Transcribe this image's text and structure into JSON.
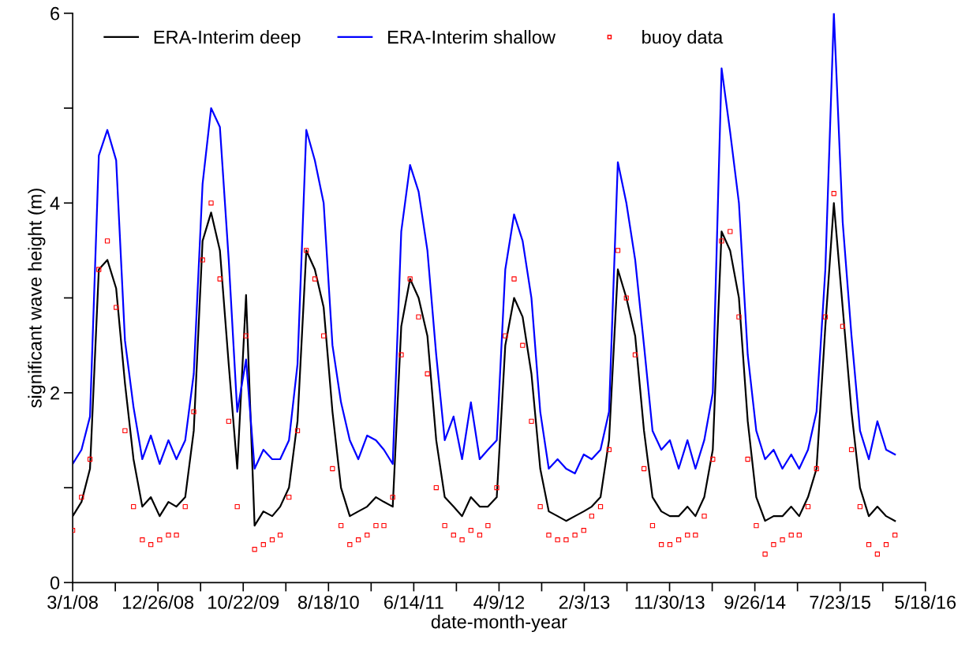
{
  "chart_data": {
    "type": "line",
    "xlabel": "date-month-year",
    "ylabel": "significant wave height (m)",
    "x": [
      "2008-03",
      "2008-04",
      "2008-05",
      "2008-06",
      "2008-07",
      "2008-08",
      "2008-09",
      "2008-10",
      "2008-11",
      "2008-12",
      "2009-01",
      "2009-02",
      "2009-03",
      "2009-04",
      "2009-05",
      "2009-06",
      "2009-07",
      "2009-08",
      "2009-09",
      "2009-10",
      "2009-11",
      "2009-12",
      "2010-01",
      "2010-02",
      "2010-03",
      "2010-04",
      "2010-05",
      "2010-06",
      "2010-07",
      "2010-08",
      "2010-09",
      "2010-10",
      "2010-11",
      "2010-12",
      "2011-01",
      "2011-02",
      "2011-03",
      "2011-04",
      "2011-05",
      "2011-06",
      "2011-07",
      "2011-08",
      "2011-09",
      "2011-10",
      "2011-11",
      "2011-12",
      "2012-01",
      "2012-02",
      "2012-03",
      "2012-04",
      "2012-05",
      "2012-06",
      "2012-07",
      "2012-08",
      "2012-09",
      "2012-10",
      "2012-11",
      "2012-12",
      "2013-01",
      "2013-02",
      "2013-03",
      "2013-04",
      "2013-05",
      "2013-06",
      "2013-07",
      "2013-08",
      "2013-09",
      "2013-10",
      "2013-11",
      "2013-12",
      "2014-01",
      "2014-02",
      "2014-03",
      "2014-04",
      "2014-05",
      "2014-06",
      "2014-07",
      "2014-08",
      "2014-09",
      "2014-10",
      "2014-11",
      "2014-12",
      "2015-01",
      "2015-02",
      "2015-03",
      "2015-04",
      "2015-05",
      "2015-06",
      "2015-07",
      "2015-08",
      "2015-09",
      "2015-10",
      "2015-11",
      "2015-12",
      "2016-01",
      "2016-02"
    ],
    "series": [
      {
        "name": "ERA-Interim deep",
        "color": "#000000",
        "values": [
          0.7,
          0.85,
          1.2,
          3.3,
          3.4,
          3.1,
          2.1,
          1.3,
          0.8,
          0.9,
          0.7,
          0.85,
          0.8,
          0.9,
          1.6,
          3.6,
          3.9,
          3.5,
          2.3,
          1.2,
          3.03,
          0.6,
          0.75,
          0.7,
          0.8,
          1.0,
          1.7,
          3.5,
          3.3,
          2.9,
          1.8,
          1.0,
          0.7,
          0.75,
          0.8,
          0.9,
          0.85,
          0.8,
          2.7,
          3.2,
          3.0,
          2.6,
          1.5,
          0.9,
          0.8,
          0.7,
          0.9,
          0.8,
          0.8,
          0.9,
          2.5,
          3.0,
          2.8,
          2.2,
          1.2,
          0.75,
          0.7,
          0.65,
          0.7,
          0.75,
          0.8,
          0.9,
          1.5,
          3.3,
          3.0,
          2.6,
          1.6,
          0.9,
          0.75,
          0.7,
          0.7,
          0.8,
          0.7,
          0.9,
          1.4,
          3.7,
          3.5,
          3.0,
          1.7,
          0.9,
          0.65,
          0.7,
          0.7,
          0.8,
          0.7,
          0.9,
          1.2,
          2.7,
          4.0,
          2.9,
          1.8,
          1.0,
          0.7,
          0.8,
          0.7,
          0.65
        ]
      },
      {
        "name": "ERA-Interim shallow",
        "color": "#0000ff",
        "values": [
          1.25,
          1.4,
          1.75,
          4.5,
          4.77,
          4.45,
          2.55,
          1.85,
          1.3,
          1.55,
          1.25,
          1.5,
          1.3,
          1.5,
          2.2,
          4.2,
          5.0,
          4.8,
          3.4,
          1.8,
          2.35,
          1.2,
          1.4,
          1.3,
          1.3,
          1.5,
          2.3,
          4.77,
          4.45,
          4.0,
          2.5,
          1.9,
          1.5,
          1.3,
          1.55,
          1.5,
          1.4,
          1.25,
          3.7,
          4.4,
          4.12,
          3.5,
          2.4,
          1.5,
          1.75,
          1.3,
          1.9,
          1.3,
          1.4,
          1.5,
          3.3,
          3.88,
          3.6,
          3.0,
          1.8,
          1.2,
          1.3,
          1.2,
          1.15,
          1.35,
          1.3,
          1.4,
          1.8,
          4.43,
          4.0,
          3.4,
          2.5,
          1.6,
          1.4,
          1.5,
          1.2,
          1.5,
          1.2,
          1.5,
          2.0,
          5.42,
          4.75,
          4.0,
          2.4,
          1.6,
          1.3,
          1.4,
          1.2,
          1.35,
          1.2,
          1.4,
          1.8,
          3.3,
          6.0,
          3.8,
          2.6,
          1.6,
          1.3,
          1.7,
          1.4,
          1.35
        ]
      },
      {
        "name": "buoy data",
        "type": "scatter",
        "color": "#ff0000",
        "marker": "square",
        "values": [
          0.55,
          0.9,
          1.3,
          3.3,
          3.6,
          2.9,
          1.6,
          0.8,
          0.45,
          0.4,
          0.45,
          0.5,
          0.5,
          0.8,
          1.8,
          3.4,
          4.0,
          3.2,
          1.7,
          0.8,
          2.6,
          0.35,
          0.4,
          0.45,
          0.5,
          0.9,
          1.6,
          3.5,
          3.2,
          2.6,
          1.2,
          0.6,
          0.4,
          0.45,
          0.5,
          0.6,
          0.6,
          0.9,
          2.4,
          3.2,
          2.8,
          2.2,
          1.0,
          0.6,
          0.5,
          0.45,
          0.55,
          0.5,
          0.6,
          1.0,
          2.6,
          3.2,
          2.5,
          1.7,
          0.8,
          0.5,
          0.45,
          0.45,
          0.5,
          0.55,
          0.7,
          0.8,
          1.4,
          3.5,
          3.0,
          2.4,
          1.2,
          0.6,
          0.4,
          0.4,
          0.45,
          0.5,
          0.5,
          0.7,
          1.3,
          3.6,
          3.7,
          2.8,
          1.3,
          0.6,
          0.3,
          0.4,
          0.45,
          0.5,
          0.5,
          0.8,
          1.2,
          2.8,
          4.1,
          2.7,
          1.4,
          0.8,
          0.4,
          0.3,
          0.4,
          0.5
        ]
      }
    ],
    "xlim": [
      "2008-03-01",
      "2016-05-18"
    ],
    "xticks": [
      {
        "value": "2008-03-01",
        "label": "3/1/08"
      },
      {
        "value": "2008-07-29",
        "label": null
      },
      {
        "value": "2008-12-26",
        "label": "12/26/08"
      },
      {
        "value": "2009-05-25",
        "label": null
      },
      {
        "value": "2009-10-22",
        "label": "10/22/09"
      },
      {
        "value": "2010-03-21",
        "label": null
      },
      {
        "value": "2010-08-18",
        "label": "8/18/10"
      },
      {
        "value": "2011-01-15",
        "label": null
      },
      {
        "value": "2011-06-14",
        "label": "6/14/11"
      },
      {
        "value": "2011-11-11",
        "label": null
      },
      {
        "value": "2012-04-09",
        "label": "4/9/12"
      },
      {
        "value": "2012-09-06",
        "label": null
      },
      {
        "value": "2013-02-03",
        "label": "2/3/13"
      },
      {
        "value": "2013-07-03",
        "label": null
      },
      {
        "value": "2013-11-30",
        "label": "11/30/13"
      },
      {
        "value": "2014-04-29",
        "label": null
      },
      {
        "value": "2014-09-26",
        "label": "9/26/14"
      },
      {
        "value": "2015-02-23",
        "label": null
      },
      {
        "value": "2015-07-23",
        "label": "7/23/15"
      },
      {
        "value": "2015-12-20",
        "label": null
      },
      {
        "value": "2016-05-18",
        "label": "5/18/16"
      }
    ],
    "ylim": [
      0,
      6
    ],
    "yticks": [
      0,
      {
        "value": 1,
        "label": null
      },
      2,
      {
        "value": 3,
        "label": null
      },
      4,
      {
        "value": 5,
        "label": null
      },
      6
    ],
    "legend": "top",
    "grid": false
  }
}
